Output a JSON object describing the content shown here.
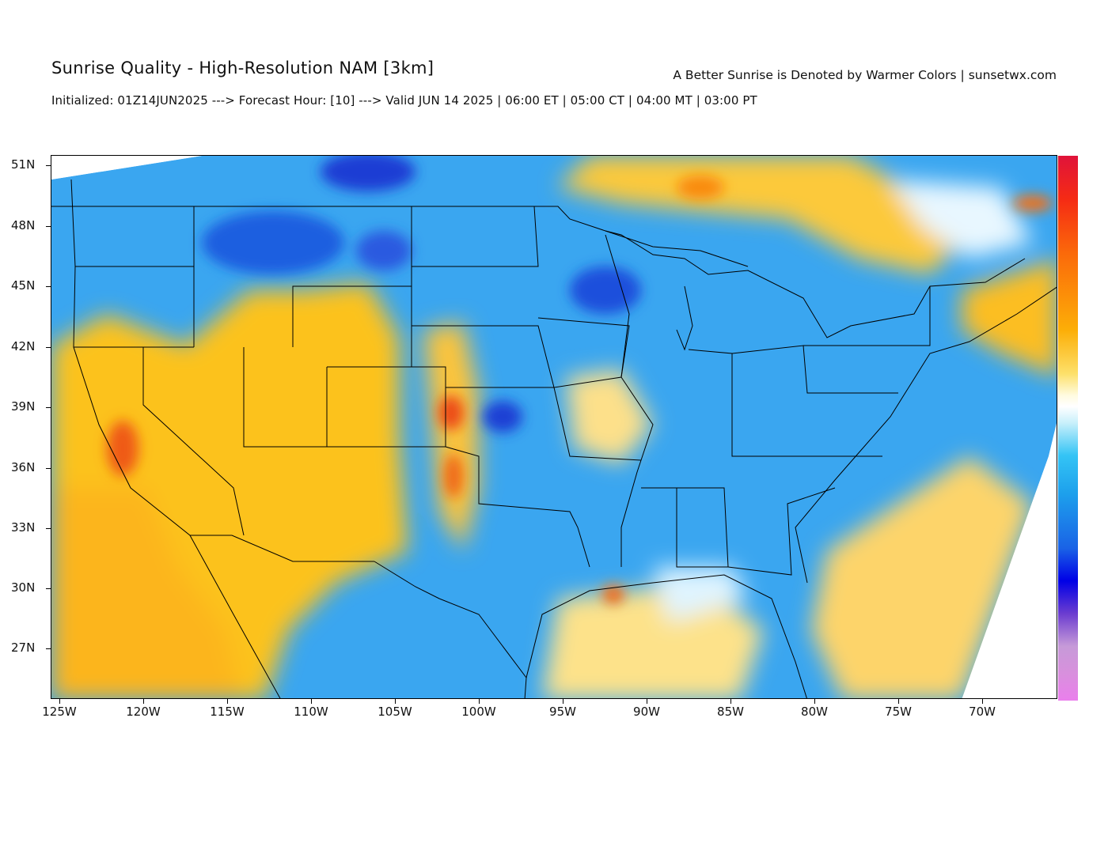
{
  "header": {
    "title": "Sunrise Quality - High-Resolution NAM [3km]",
    "tagline": "A Better Sunrise is Denoted by Warmer Colors | sunsetwx.com",
    "subtitle": "Initialized: 01Z14JUN2025 ---> Forecast Hour: [10] ---> Valid JUN 14 2025 | 06:00 ET | 05:00 CT | 04:00 MT | 03:00 PT"
  },
  "map": {
    "lat_labels": [
      "51N",
      "48N",
      "45N",
      "42N",
      "39N",
      "36N",
      "33N",
      "30N",
      "27N"
    ],
    "lon_labels": [
      "125W",
      "120W",
      "115W",
      "110W",
      "105W",
      "100W",
      "95W",
      "90W",
      "85W",
      "80W",
      "75W",
      "70W"
    ],
    "colors": {
      "warm_orange": "#fcbf1e",
      "deep_orange": "#fb9f0f",
      "red": "#e8341c",
      "light_blue": "#35bdf4",
      "mid_blue": "#1e8aea",
      "dark_blue": "#1a3fd8",
      "white": "#ffffff"
    }
  },
  "colorbar": {
    "scale": "sunrise-quality",
    "top_color": "#e0133a",
    "bottom_color": "#ea7fec"
  }
}
